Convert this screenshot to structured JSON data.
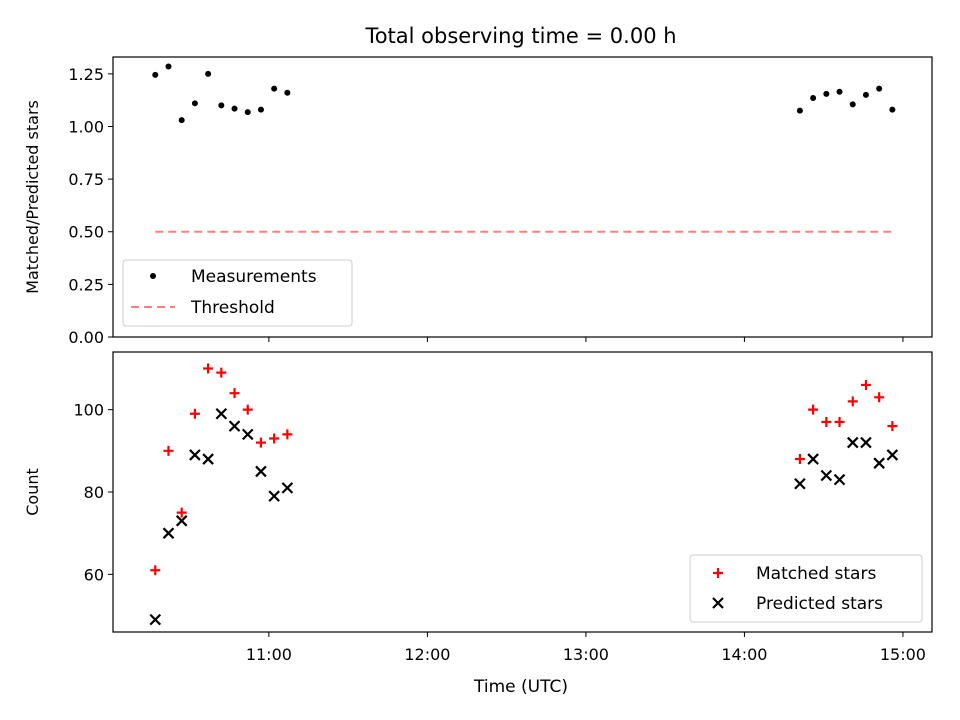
{
  "figure": {
    "title": "Total observing time = 0.00 h",
    "xlabel": "Time (UTC)"
  },
  "colors": {
    "measurements": "#000000",
    "threshold": "#ff7f7f",
    "matched": "#ff0000",
    "predicted": "#000000"
  },
  "chart_data": [
    {
      "type": "scatter",
      "panel": "top",
      "title": "Total observing time = 0.00 h",
      "ylabel": "Matched/Predicted stars",
      "ylim": [
        0.0,
        1.33
      ],
      "xlim": [
        "10:01",
        "15:11"
      ],
      "yticks": [
        "0.00",
        "0.25",
        "0.50",
        "0.75",
        "1.00",
        "1.25"
      ],
      "yticks_values": [
        0.0,
        0.25,
        0.5,
        0.75,
        1.0,
        1.25
      ],
      "legend_position": "lower-left",
      "series": [
        {
          "name": "Measurements",
          "style": "dots",
          "x": [
            "10:17",
            "10:22",
            "10:27",
            "10:32",
            "10:37",
            "10:42",
            "10:47",
            "10:52",
            "10:57",
            "11:02",
            "11:07",
            "14:21",
            "14:26",
            "14:31",
            "14:36",
            "14:41",
            "14:46",
            "14:51",
            "14:56"
          ],
          "values": [
            1.245,
            1.285,
            1.03,
            1.11,
            1.25,
            1.1,
            1.085,
            1.068,
            1.08,
            1.18,
            1.16,
            1.075,
            1.135,
            1.155,
            1.165,
            1.105,
            1.15,
            1.18,
            1.08
          ]
        },
        {
          "name": "Threshold",
          "style": "dashed",
          "x": [
            "10:17",
            "14:56"
          ],
          "values": [
            0.5,
            0.5
          ]
        }
      ]
    },
    {
      "type": "scatter",
      "panel": "bottom",
      "xlabel": "Time (UTC)",
      "ylabel": "Count",
      "ylim": [
        46,
        114
      ],
      "xlim": [
        "10:01",
        "15:11"
      ],
      "yticks": [
        "60",
        "80",
        "100"
      ],
      "yticks_values": [
        60,
        80,
        100
      ],
      "xticks": [
        "11:00",
        "12:00",
        "13:00",
        "14:00",
        "15:00"
      ],
      "legend_position": "lower-right",
      "series": [
        {
          "name": "Matched stars",
          "marker": "+",
          "x": [
            "10:17",
            "10:22",
            "10:27",
            "10:32",
            "10:37",
            "10:42",
            "10:47",
            "10:52",
            "10:57",
            "11:02",
            "11:07",
            "14:21",
            "14:26",
            "14:31",
            "14:36",
            "14:41",
            "14:46",
            "14:51",
            "14:56"
          ],
          "values": [
            61,
            90,
            75,
            99,
            110,
            109,
            104,
            100,
            92,
            93,
            94,
            88,
            100,
            97,
            97,
            102,
            106,
            103,
            96
          ]
        },
        {
          "name": "Predicted stars",
          "marker": "x",
          "x": [
            "10:17",
            "10:22",
            "10:27",
            "10:32",
            "10:37",
            "10:42",
            "10:47",
            "10:52",
            "10:57",
            "11:02",
            "11:07",
            "14:21",
            "14:26",
            "14:31",
            "14:36",
            "14:41",
            "14:46",
            "14:51",
            "14:56"
          ],
          "values": [
            49,
            70,
            73,
            89,
            88,
            99,
            96,
            94,
            85,
            79,
            81,
            82,
            88,
            84,
            83,
            92,
            92,
            87,
            89
          ]
        }
      ]
    }
  ]
}
